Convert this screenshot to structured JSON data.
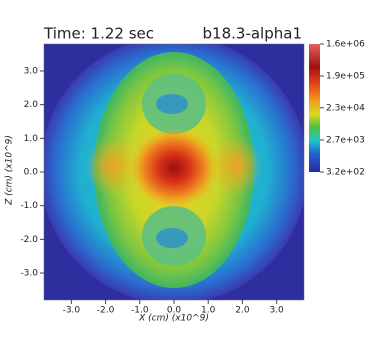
{
  "chart_data": {
    "type": "heatmap",
    "title": "Time: 1.22 sec",
    "subtitle": "b18.3-alpha1",
    "x_label": "X (cm) (x10^9)",
    "y_label": "Z (cm) (x10^9)",
    "xlim": [
      -3.8,
      3.8
    ],
    "ylim": [
      -3.8,
      3.8
    ],
    "xticks": [
      {
        "value": -3,
        "label": "-3.0"
      },
      {
        "value": -2,
        "label": "-2.0"
      },
      {
        "value": -1,
        "label": "-1.0"
      },
      {
        "value": 0,
        "label": "0.0"
      },
      {
        "value": 1,
        "label": "1.0"
      },
      {
        "value": 2,
        "label": "2.0"
      },
      {
        "value": 3,
        "label": "3.0"
      }
    ],
    "yticks": [
      {
        "value": -3,
        "label": "-3.0"
      },
      {
        "value": -2,
        "label": "-2.0"
      },
      {
        "value": -1,
        "label": "-1.0"
      },
      {
        "value": 0,
        "label": "0.0"
      },
      {
        "value": 1,
        "label": "1.0"
      },
      {
        "value": 2,
        "label": "2.0"
      },
      {
        "value": 3,
        "label": "3.0"
      }
    ],
    "colorbar": {
      "log_scale": true,
      "lim": [
        320,
        1600000
      ],
      "ticks": [
        {
          "value": 1600000,
          "label": "1.6e+06"
        },
        {
          "value": 190000,
          "label": "1.9e+05"
        },
        {
          "value": 23000,
          "label": "2.3e+04"
        },
        {
          "value": 2700,
          "label": "2.7e+03"
        },
        {
          "value": 320,
          "label": "3.2e+02"
        }
      ]
    }
  }
}
